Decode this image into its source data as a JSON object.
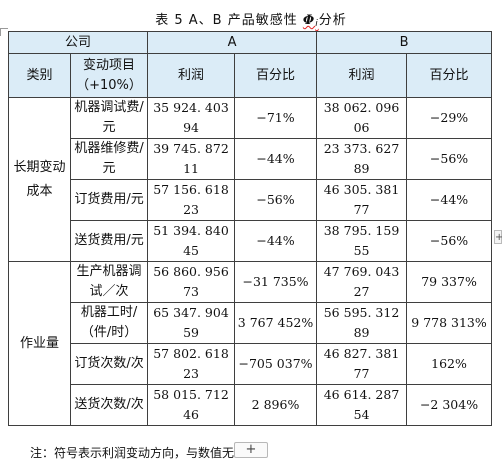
{
  "caption": {
    "prefix": "表 5   A、B 产品敏感性 ",
    "symbol": "Φ",
    "subscript": "i",
    "suffix": "分析"
  },
  "header": {
    "company": "公司",
    "a": "A",
    "b": "B",
    "category": "类别",
    "item": "变动项目（+10%）",
    "profit": "利润",
    "percent": "百分比"
  },
  "groups": [
    {
      "name": "长期变动成本",
      "rows": [
        {
          "item": "机器调试费/元",
          "a_profit": "35 924. 403 94",
          "a_pct": "−71%",
          "b_profit": "38 062. 096 06",
          "b_pct": "−29%"
        },
        {
          "item": "机器维修费/元",
          "a_profit": "39 745. 872 11",
          "a_pct": "−44%",
          "b_profit": "23 373. 627 89",
          "b_pct": "−56%"
        },
        {
          "item": "订货费用/元",
          "a_profit": "57 156. 618 23",
          "a_pct": "−56%",
          "b_profit": "46 305. 381 77",
          "b_pct": "−44%"
        },
        {
          "item": "送货费用/元",
          "a_profit": "51 394. 840 45",
          "a_pct": "−44%",
          "b_profit": "38 795. 159 55",
          "b_pct": "−56%"
        }
      ]
    },
    {
      "name": "作业量",
      "rows": [
        {
          "item": "生产机器调试／次",
          "a_profit": "56 860. 956 73",
          "a_pct": "−31 735%",
          "b_profit": "47 769. 043 27",
          "b_pct": "79 337%"
        },
        {
          "item": "机器工时/（件/时）",
          "a_profit": "65 347. 904 59",
          "a_pct": "3 767 452%",
          "b_profit": "56 595. 312 89",
          "b_pct": "9 778 313%"
        },
        {
          "item": "订货次数/次",
          "a_profit": "57 802. 618 23",
          "a_pct": "−705 037%",
          "b_profit": "46 827. 381 77",
          "b_pct": "162%"
        },
        {
          "item": "送货次数/次",
          "a_profit": "58 015. 712 46",
          "a_pct": "2 896%",
          "b_profit": "46 614. 287 54",
          "b_pct": "−2 304%"
        }
      ]
    }
  ],
  "note": "注：符号表示利润变动方向，与数值无",
  "controls": {
    "add_row": "+",
    "column_handle": "+"
  }
}
